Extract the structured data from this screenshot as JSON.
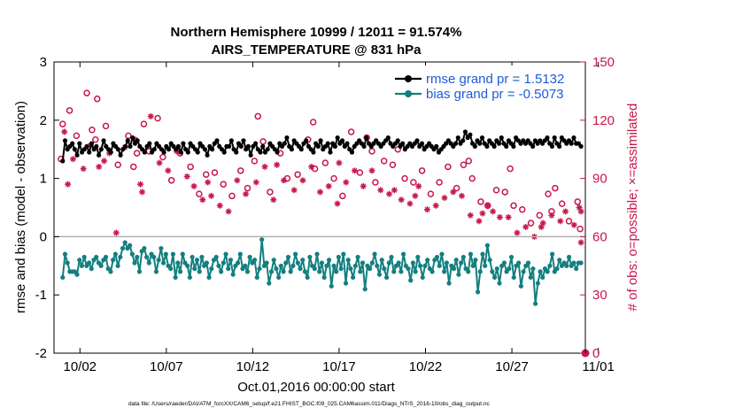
{
  "chart_data": {
    "type": "line",
    "title_line1": "Northern Hemisphere 10999 / 12011 = 91.574%",
    "title_line2": "AIRS_TEMPERATURE @ 831 hPa",
    "xlabel": "Oct.01,2016 00:00:00 start",
    "ylabel_left": "rmse and bias (model - observation)",
    "ylabel_right": "# of obs: o=possible; ×=assimilated",
    "footnote": "data file: /Users/raeder/DAI/ATM_forcXX/CAM6_setup/f.e21.FHIST_BGC.f09_025.CAM6assim.011/Diags_NTrS_2016-10/obs_diag_output.nc",
    "xlim": [
      0.5,
      31.25
    ],
    "ylim_left": [
      -2,
      3
    ],
    "ylim_right": [
      0,
      150
    ],
    "x_tick_values": [
      2,
      7,
      12,
      17,
      22,
      27,
      32
    ],
    "x_tick_labels": [
      "10/02",
      "10/07",
      "10/12",
      "10/17",
      "10/22",
      "10/27",
      "11/01"
    ],
    "y_left_ticks": [
      "-2",
      "-1",
      "0",
      "1",
      "2",
      "3"
    ],
    "y_right_ticks": [
      "0",
      "30",
      "60",
      "90",
      "120",
      "150"
    ],
    "colors": {
      "rmse": "#000000",
      "bias": "#137f7f",
      "obs": "#c8174a",
      "legend_text": "#1e5bd8",
      "zero_line": "#b0b0b0"
    },
    "legend": [
      {
        "name": "rmse grand pr = 1.5132",
        "color": "#000000"
      },
      {
        "name": "bias grand pr = -0.5073",
        "color": "#137f7f"
      }
    ],
    "legend_position": "top-right",
    "series": [
      {
        "name": "rmse",
        "axis": "left",
        "values": [
          1.3,
          1.65,
          1.5,
          1.55,
          1.6,
          1.5,
          1.4,
          1.6,
          1.45,
          1.5,
          1.55,
          1.45,
          1.6,
          1.5,
          1.55,
          1.4,
          1.5,
          1.65,
          1.55,
          1.5,
          1.45,
          1.6,
          1.55,
          1.5,
          1.4,
          1.5,
          1.55,
          1.65,
          1.55,
          1.7,
          1.6,
          1.65,
          1.55,
          1.5,
          1.45,
          1.55,
          1.6,
          1.45,
          1.5,
          1.6,
          1.55,
          1.5,
          1.45,
          1.55,
          1.5,
          1.6,
          1.55,
          1.5,
          1.55,
          1.45,
          1.6,
          1.5,
          1.45,
          1.6,
          1.55,
          1.5,
          1.45,
          1.6,
          1.55,
          1.5,
          1.4,
          1.55,
          1.5,
          1.6,
          1.65,
          1.55,
          1.5,
          1.45,
          1.55,
          1.55,
          1.65,
          1.5,
          1.45,
          1.6,
          1.55,
          1.65,
          1.5,
          1.55,
          1.4,
          1.55,
          1.6,
          1.5,
          1.45,
          1.55,
          1.45,
          1.5,
          1.6,
          1.55,
          1.5,
          1.45,
          1.6,
          1.55,
          1.6,
          1.7,
          1.55,
          1.5,
          1.65,
          1.6,
          1.55,
          1.5,
          1.6,
          1.65,
          1.55,
          1.5,
          1.45,
          1.6,
          1.55,
          1.65,
          1.5,
          1.55,
          1.6,
          1.45,
          1.6,
          1.55,
          1.7,
          1.6,
          1.65,
          1.55,
          1.6,
          1.5,
          1.45,
          1.55,
          1.6,
          1.65,
          1.6,
          1.55,
          1.7,
          1.6,
          1.55,
          1.6,
          1.65,
          1.6,
          1.55,
          1.6,
          1.65,
          1.7,
          1.6,
          1.55,
          1.6,
          1.65,
          1.55,
          1.6,
          1.5,
          1.55,
          1.6,
          1.55,
          1.6,
          1.65,
          1.55,
          1.6,
          1.5,
          1.55,
          1.6,
          1.55,
          1.5,
          1.55,
          1.45,
          1.5,
          1.55,
          1.6,
          1.65,
          1.6,
          1.55,
          1.6,
          1.7,
          1.6,
          1.65,
          1.8,
          1.7,
          1.75,
          1.6,
          1.55,
          1.65,
          1.6,
          1.7,
          1.6,
          1.55,
          1.65,
          1.6,
          1.55,
          1.65,
          1.6,
          1.7,
          1.6,
          1.55,
          1.65,
          1.6,
          1.55,
          1.7,
          1.65,
          1.6,
          1.65,
          1.6,
          1.65,
          1.6,
          1.55,
          1.65,
          1.6,
          1.65,
          1.6,
          1.65,
          1.7,
          1.6,
          1.55,
          1.7,
          1.6,
          1.55,
          1.7,
          1.65,
          1.6,
          1.65,
          1.6,
          1.7,
          1.6,
          1.6,
          1.55
        ]
      },
      {
        "name": "bias",
        "axis": "left",
        "values": [
          -0.7,
          -0.3,
          -0.45,
          -0.6,
          -0.6,
          -0.6,
          -0.65,
          -0.4,
          -0.5,
          -0.35,
          -0.5,
          -0.45,
          -0.55,
          -0.4,
          -0.35,
          -0.45,
          -0.5,
          -0.4,
          -0.35,
          -0.55,
          -0.6,
          -0.4,
          -0.3,
          -0.5,
          -0.35,
          -0.2,
          -0.1,
          -0.2,
          -0.15,
          -0.3,
          -0.45,
          -0.35,
          -0.6,
          -0.25,
          -0.2,
          -0.35,
          -0.45,
          -0.3,
          -0.35,
          -0.6,
          -0.4,
          -0.2,
          -0.45,
          -0.3,
          -0.5,
          -0.55,
          -0.3,
          -0.7,
          -0.45,
          -0.6,
          -0.3,
          -0.45,
          -0.5,
          -0.7,
          -0.35,
          -0.55,
          -0.4,
          -0.6,
          -0.35,
          -0.5,
          -0.45,
          -0.7,
          -0.55,
          -0.4,
          -0.35,
          -0.5,
          -0.6,
          -0.45,
          -0.3,
          -0.55,
          -0.4,
          -0.65,
          -0.5,
          -0.45,
          -0.3,
          -0.55,
          -0.5,
          -0.6,
          -0.35,
          -0.45,
          -0.4,
          -0.7,
          -0.55,
          -0.05,
          -0.5,
          -0.45,
          -0.8,
          -0.6,
          -0.4,
          -0.55,
          -0.7,
          -0.5,
          -0.6,
          -0.45,
          -0.35,
          -0.6,
          -0.5,
          -0.3,
          -0.45,
          -0.55,
          -0.4,
          -0.6,
          -0.7,
          -0.35,
          -0.5,
          -0.55,
          -0.3,
          -0.6,
          -0.45,
          -0.7,
          -0.5,
          -0.4,
          -0.85,
          -0.5,
          -0.6,
          -0.35,
          -0.55,
          -0.3,
          -0.8,
          -0.4,
          -0.55,
          -0.7,
          -0.5,
          -0.35,
          -0.6,
          -0.45,
          -0.9,
          -0.5,
          -0.55,
          -0.45,
          -0.3,
          -0.5,
          -0.65,
          -0.4,
          -0.55,
          -0.7,
          -0.45,
          -0.35,
          -0.6,
          -0.5,
          -0.45,
          -0.6,
          -0.3,
          -0.5,
          -0.55,
          -0.75,
          -0.45,
          -0.6,
          -0.35,
          -0.5,
          -0.7,
          -0.5,
          -0.4,
          -0.55,
          -0.6,
          -0.4,
          -0.35,
          -0.5,
          -0.3,
          -0.6,
          -0.45,
          -0.8,
          -0.5,
          -0.55,
          -0.4,
          -0.65,
          -0.45,
          -0.35,
          -0.55,
          -0.6,
          -0.3,
          -0.5,
          -0.4,
          -0.95,
          -0.6,
          -0.3,
          -0.5,
          -0.15,
          -0.4,
          -0.6,
          -0.7,
          -0.55,
          -0.8,
          -0.5,
          -0.45,
          -0.6,
          -0.55,
          -0.35,
          -0.7,
          -0.5,
          -0.45,
          -0.85,
          -0.6,
          -0.5,
          -0.45,
          -0.7,
          -0.55,
          -1.15,
          -0.8,
          -0.6,
          -0.7,
          -0.55,
          -0.6,
          -0.5,
          -0.3,
          -0.6,
          -0.55,
          -0.4,
          -0.5,
          -0.45,
          -0.5,
          -0.35,
          -0.5,
          -0.45,
          -0.55,
          -0.45,
          -0.45
        ]
      },
      {
        "name": "possible",
        "axis": "right",
        "marker": "o",
        "points": [
          [
            1.4,
            125
          ],
          [
            1.8,
            112
          ],
          [
            2.4,
            134
          ],
          [
            2.9,
            110
          ],
          [
            3.5,
            117
          ],
          [
            4.2,
            97
          ],
          [
            4.8,
            112
          ],
          [
            5.3,
            103
          ],
          [
            5.7,
            118
          ],
          [
            6.0,
            104
          ],
          [
            6.5,
            121
          ],
          [
            6.8,
            101
          ],
          [
            7.3,
            89
          ],
          [
            7.8,
            103
          ],
          [
            8.4,
            96
          ],
          [
            8.9,
            82
          ],
          [
            9.3,
            92
          ],
          [
            9.8,
            93
          ],
          [
            10.3,
            87
          ],
          [
            10.8,
            81
          ],
          [
            11.3,
            94
          ],
          [
            11.7,
            85
          ],
          [
            12.1,
            99
          ],
          [
            12.6,
            109
          ],
          [
            13.0,
            83
          ],
          [
            13.6,
            103
          ],
          [
            14.0,
            90
          ],
          [
            14.6,
            92
          ],
          [
            15.2,
            110
          ],
          [
            15.6,
            95
          ],
          [
            16.2,
            98
          ],
          [
            16.7,
            90
          ],
          [
            17.2,
            81
          ],
          [
            17.7,
            114
          ],
          [
            18.2,
            93
          ],
          [
            18.6,
            111
          ],
          [
            19.1,
            88
          ],
          [
            19.6,
            99
          ],
          [
            20.1,
            97
          ],
          [
            20.4,
            105
          ],
          [
            20.8,
            90
          ],
          [
            21.3,
            88
          ],
          [
            21.8,
            94
          ],
          [
            22.3,
            82
          ],
          [
            22.8,
            88
          ],
          [
            23.3,
            96
          ],
          [
            23.8,
            85
          ],
          [
            24.2,
            97
          ],
          [
            24.7,
            90
          ],
          [
            25.2,
            78
          ],
          [
            25.6,
            76
          ],
          [
            26.1,
            84
          ],
          [
            26.6,
            83
          ],
          [
            27.1,
            76
          ],
          [
            27.6,
            74
          ],
          [
            28.1,
            67
          ],
          [
            28.6,
            71
          ],
          [
            29.1,
            82
          ],
          [
            29.5,
            85
          ],
          [
            29.9,
            77
          ],
          [
            30.3,
            68
          ],
          [
            30.8,
            78
          ],
          [
            30.95,
            64
          ],
          [
            1.0,
            118
          ],
          [
            3.0,
            131
          ],
          [
            5.1,
            96
          ],
          [
            0.9,
            100
          ],
          [
            2.7,
            115
          ],
          [
            12.3,
            122
          ],
          [
            15.5,
            119
          ],
          [
            18.9,
            104
          ],
          [
            24.5,
            99
          ],
          [
            26.9,
            95
          ],
          [
            29.3,
            73
          ]
        ]
      },
      {
        "name": "assimilated",
        "axis": "right",
        "marker": "x",
        "points": [
          [
            1.1,
            114
          ],
          [
            1.6,
            100
          ],
          [
            2.2,
            95
          ],
          [
            2.6,
            107
          ],
          [
            3.1,
            96
          ],
          [
            3.7,
            103
          ],
          [
            4.1,
            62
          ],
          [
            4.6,
            106
          ],
          [
            5.2,
            110
          ],
          [
            5.6,
            83
          ],
          [
            6.1,
            122
          ],
          [
            6.6,
            98
          ],
          [
            7.1,
            94
          ],
          [
            7.6,
            104
          ],
          [
            8.2,
            91
          ],
          [
            8.6,
            86
          ],
          [
            9.1,
            79
          ],
          [
            9.6,
            81
          ],
          [
            10.1,
            76
          ],
          [
            10.6,
            73
          ],
          [
            11.1,
            89
          ],
          [
            11.6,
            82
          ],
          [
            12.2,
            88
          ],
          [
            12.7,
            96
          ],
          [
            13.2,
            79
          ],
          [
            13.8,
            89
          ],
          [
            14.4,
            84
          ],
          [
            14.9,
            89
          ],
          [
            15.4,
            96
          ],
          [
            15.9,
            83
          ],
          [
            16.4,
            86
          ],
          [
            16.9,
            77
          ],
          [
            17.4,
            88
          ],
          [
            17.9,
            94
          ],
          [
            18.4,
            86
          ],
          [
            18.9,
            94
          ],
          [
            19.4,
            84
          ],
          [
            19.9,
            82
          ],
          [
            20.2,
            84
          ],
          [
            20.6,
            79
          ],
          [
            21.1,
            77
          ],
          [
            21.6,
            86
          ],
          [
            22.1,
            74
          ],
          [
            22.6,
            76
          ],
          [
            23.1,
            80
          ],
          [
            23.6,
            83
          ],
          [
            24.1,
            81
          ],
          [
            24.6,
            71
          ],
          [
            25.1,
            68
          ],
          [
            25.3,
            72
          ],
          [
            25.9,
            73
          ],
          [
            26.3,
            70
          ],
          [
            26.8,
            70
          ],
          [
            27.3,
            62
          ],
          [
            27.8,
            65
          ],
          [
            28.3,
            60
          ],
          [
            28.8,
            67
          ],
          [
            29.3,
            71
          ],
          [
            29.8,
            68
          ],
          [
            30.1,
            73
          ],
          [
            30.6,
            66
          ],
          [
            30.9,
            75
          ],
          [
            31.0,
            73
          ],
          [
            1.3,
            87
          ],
          [
            3.4,
            99
          ],
          [
            5.5,
            87
          ],
          [
            9.4,
            88
          ],
          [
            13.4,
            97
          ],
          [
            17.0,
            98
          ],
          [
            21.4,
            81
          ],
          [
            25.6,
            76
          ],
          [
            28.7,
            65
          ],
          [
            31.0,
            57
          ]
        ]
      }
    ],
    "terminal_marker": {
      "x": 31.25,
      "y_right": 0
    }
  }
}
